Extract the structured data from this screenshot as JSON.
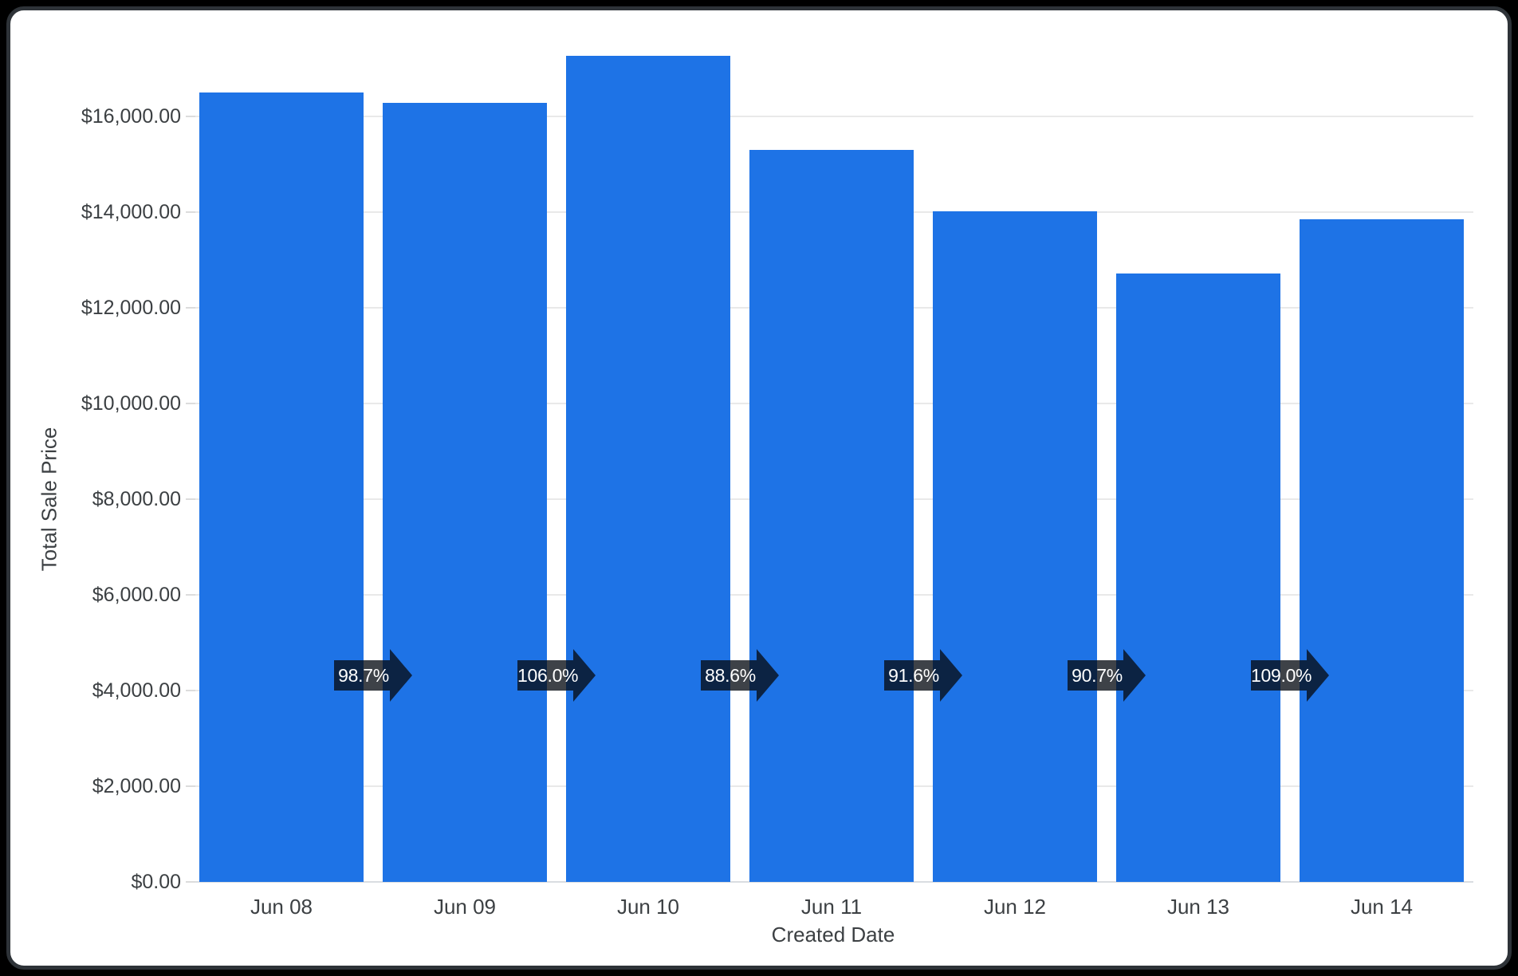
{
  "chart_data": {
    "type": "bar",
    "title": "",
    "xlabel": "Created Date",
    "ylabel": "Total Sale Price",
    "categories": [
      "Jun 08",
      "Jun 09",
      "Jun 10",
      "Jun 11",
      "Jun 12",
      "Jun 13",
      "Jun 14"
    ],
    "values": [
      16500,
      16290,
      17270,
      15300,
      14010,
      12710,
      13850
    ],
    "percent_changes": [
      "98.7%",
      "106.0%",
      "88.6%",
      "91.6%",
      "90.7%",
      "109.0%"
    ],
    "y_tick_labels": [
      "$0.00",
      "$2,000.00",
      "$4,000.00",
      "$6,000.00",
      "$8,000.00",
      "$10,000.00",
      "$12,000.00",
      "$14,000.00",
      "$16,000.00"
    ],
    "y_tick_step": 2000,
    "ylim": [
      0,
      17430
    ],
    "grid": true,
    "legend": "none",
    "colors": {
      "bar": "#1e73e6",
      "gridline": "#e9e9e9",
      "baseline": "#d9dde1",
      "axis_text": "#3c4043",
      "badge_bg": "rgba(8,13,20,0.78)",
      "badge_text": "#ffffff",
      "card_bg": "#ffffff",
      "card_border": "#2e3338",
      "page_bg": "#000000"
    }
  }
}
